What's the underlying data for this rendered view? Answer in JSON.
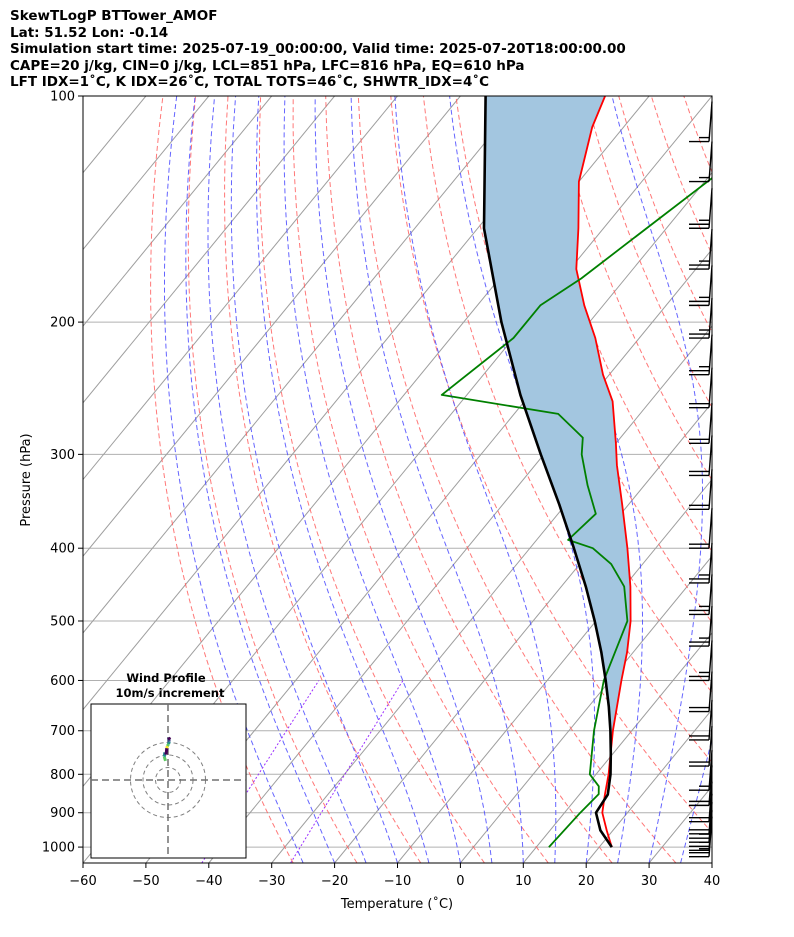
{
  "header": {
    "line1": "SkewTLogP BTTower_AMOF",
    "line2": "Lat: 51.52   Lon: -0.14",
    "line3": "Simulation start time: 2025-07-19_00:00:00, Valid time: 2025-07-20T18:00:00.00",
    "line4": "CAPE=20 j/kg, CIN=0 j/kg, LCL=851 hPa, LFC=816 hPa, EQ=610 hPa",
    "line5": "LFT IDX=1˚C, K IDX=26˚C, TOTAL TOTS=46˚C, SHWTR_IDX=4˚C"
  },
  "chart_data": {
    "type": "line",
    "subtype": "skew-t log-p diagram",
    "xlabel": "Temperature (˚C)",
    "ylabel": "Pressure (hPa)",
    "xlim": [
      -60,
      40
    ],
    "ylim": [
      1050,
      100
    ],
    "y_scale": "log",
    "x_ticks": [
      -60,
      -50,
      -40,
      -30,
      -20,
      -10,
      0,
      10,
      20,
      30,
      40
    ],
    "x_tick_labels": [
      "−60",
      "−50",
      "−40",
      "−30",
      "−20",
      "−10",
      "0",
      "10",
      "20",
      "30",
      "40"
    ],
    "y_ticks": [
      1000,
      900,
      800,
      700,
      600,
      500,
      400,
      300,
      200,
      100
    ],
    "y_tick_labels": [
      "1000",
      "900",
      "800",
      "700",
      "600",
      "500",
      "400",
      "300",
      "200",
      "100"
    ],
    "grid": true,
    "series": [
      {
        "name": "",
        "color": "#ff0000",
        "role": "temperature",
        "p": [
          1000,
          950,
          900,
          860,
          850,
          800,
          700,
          600,
          550,
          500,
          450,
          400,
          350,
          310,
          290,
          255,
          235,
          210,
          190,
          170,
          150,
          130,
          110,
          100
        ],
        "t": [
          22,
          19,
          16,
          14.4,
          14,
          12,
          7,
          1.8,
          -1,
          -4.5,
          -9,
          -14.5,
          -21,
          -27,
          -30,
          -36,
          -41,
          -47,
          -53,
          -59,
          -64,
          -70,
          -75,
          -77
        ]
      },
      {
        "name": "",
        "color": "#008000",
        "role": "dewpoint",
        "p": [
          1000,
          900,
          850,
          830,
          800,
          700,
          600,
          500,
          450,
          420,
          400,
          390,
          360,
          330,
          300,
          285,
          265,
          250,
          210,
          190,
          175,
          100
        ],
        "t": [
          12,
          12.5,
          13,
          12,
          9,
          4,
          -1,
          -5,
          -10,
          -15,
          -20,
          -25,
          -24,
          -29,
          -34,
          -36,
          -43,
          -64,
          -60,
          -60,
          -57,
          -43
        ]
      },
      {
        "name": "",
        "color": "#000000",
        "role": "parcel",
        "p": [
          1000,
          950,
          900,
          851,
          800,
          750,
          700,
          650,
          600,
          550,
          500,
          450,
          400,
          350,
          300,
          250,
          200,
          150,
          100
        ],
        "t": [
          22,
          18,
          15,
          14.5,
          12.3,
          9.6,
          6.6,
          3.2,
          -0.7,
          -5.1,
          -10.2,
          -16.1,
          -23,
          -31,
          -40.5,
          -51.5,
          -64,
          -79,
          -96
        ]
      }
    ],
    "shading": {
      "between": [
        "temperature",
        "parcel"
      ],
      "color": "#a3c6e0"
    },
    "background_lines": {
      "isotherms_color": "#9e9e9e",
      "dry_adiabats_color": "#ff6060",
      "moist_adiabats_color": "#4a4aff",
      "mixing_ratio_color": "#9b30ff"
    },
    "wind_barbs": {
      "color": "#000000",
      "levels": [
        {
          "p": 1030,
          "speed": 25
        },
        {
          "p": 1010,
          "speed": 25
        },
        {
          "p": 985,
          "speed": 25
        },
        {
          "p": 960,
          "speed": 20
        },
        {
          "p": 925,
          "speed": 20
        },
        {
          "p": 880,
          "speed": 20
        },
        {
          "p": 840,
          "speed": 15
        },
        {
          "p": 780,
          "speed": 20
        },
        {
          "p": 720,
          "speed": 20
        },
        {
          "p": 660,
          "speed": 20
        },
        {
          "p": 600,
          "speed": 25
        },
        {
          "p": 540,
          "speed": 25
        },
        {
          "p": 490,
          "speed": 25
        },
        {
          "p": 445,
          "speed": 25
        },
        {
          "p": 400,
          "speed": 20
        },
        {
          "p": 355,
          "speed": 20
        },
        {
          "p": 320,
          "speed": 20
        },
        {
          "p": 290,
          "speed": 20
        },
        {
          "p": 260,
          "speed": 20
        },
        {
          "p": 235,
          "speed": 25
        },
        {
          "p": 210,
          "speed": 25
        },
        {
          "p": 190,
          "speed": 25
        },
        {
          "p": 170,
          "speed": 25
        },
        {
          "p": 150,
          "speed": 25
        },
        {
          "p": 130,
          "speed": 15
        },
        {
          "p": 115,
          "speed": 15
        }
      ]
    },
    "inset": {
      "title_line1": "Wind Profile",
      "title_line2": "10m/s increment",
      "rings": [
        10,
        20,
        30
      ],
      "hodograph": {
        "u": [
          -2,
          -3,
          -2.5,
          -1.5,
          -1,
          -0.5,
          0.5,
          1,
          0.5,
          1.5
        ],
        "v": [
          4.5,
          5.5,
          6.5,
          6,
          7.5,
          8,
          8.5,
          9,
          10,
          9.5
        ]
      }
    }
  }
}
